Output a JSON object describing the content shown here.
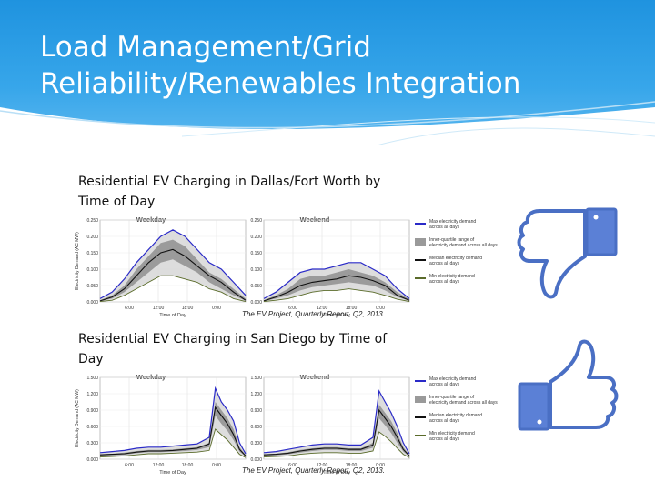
{
  "slide": {
    "title": "Load Management/Grid Reliability/Renewables Integration",
    "accent_color": "#1f93df"
  },
  "icons": {
    "top": "thumbs-down-icon",
    "bottom": "thumbs-up-icon",
    "color": "#4a6fc4"
  },
  "chart_data": [
    {
      "type": "area",
      "caption": "Residential EV Charging in Dallas/Fort Worth by Time of Day",
      "source": "The EV Project, Quarterly Report, Q2, 2013.",
      "ylabel": "Electricity Demand (AC MW)",
      "xlabel": "Time of Day",
      "x_ticks": [
        "6:00",
        "12:00",
        "18:00",
        "0:00"
      ],
      "y_ticks": [
        "0.000",
        "0.050",
        "0.100",
        "0.150",
        "0.200",
        "0.250"
      ],
      "ylim": [
        0,
        0.25
      ],
      "panels": [
        {
          "title": "Weekday",
          "hours": [
            0,
            2,
            4,
            6,
            8,
            10,
            12,
            14,
            16,
            18,
            20,
            22,
            24
          ],
          "max": [
            0.01,
            0.03,
            0.07,
            0.12,
            0.16,
            0.2,
            0.22,
            0.2,
            0.16,
            0.12,
            0.1,
            0.06,
            0.02
          ],
          "iqr_high": [
            0.005,
            0.02,
            0.05,
            0.1,
            0.14,
            0.18,
            0.19,
            0.17,
            0.13,
            0.09,
            0.07,
            0.04,
            0.01
          ],
          "median": [
            0.003,
            0.015,
            0.04,
            0.08,
            0.12,
            0.15,
            0.16,
            0.14,
            0.11,
            0.08,
            0.06,
            0.03,
            0.005
          ],
          "iqr_low": [
            0.002,
            0.01,
            0.03,
            0.06,
            0.09,
            0.12,
            0.13,
            0.11,
            0.09,
            0.06,
            0.04,
            0.02,
            0.003
          ],
          "min": [
            0.001,
            0.005,
            0.02,
            0.04,
            0.06,
            0.08,
            0.08,
            0.07,
            0.06,
            0.04,
            0.03,
            0.01,
            0.001
          ]
        },
        {
          "title": "Weekend",
          "hours": [
            0,
            2,
            4,
            6,
            8,
            10,
            12,
            14,
            16,
            18,
            20,
            22,
            24
          ],
          "max": [
            0.01,
            0.03,
            0.06,
            0.09,
            0.1,
            0.1,
            0.11,
            0.12,
            0.12,
            0.1,
            0.08,
            0.04,
            0.01
          ],
          "iqr_high": [
            0.005,
            0.02,
            0.04,
            0.07,
            0.08,
            0.08,
            0.09,
            0.1,
            0.09,
            0.08,
            0.06,
            0.03,
            0.008
          ],
          "median": [
            0.003,
            0.015,
            0.03,
            0.05,
            0.06,
            0.065,
            0.07,
            0.08,
            0.075,
            0.065,
            0.05,
            0.02,
            0.005
          ],
          "iqr_low": [
            0.002,
            0.01,
            0.02,
            0.035,
            0.045,
            0.05,
            0.055,
            0.06,
            0.055,
            0.05,
            0.035,
            0.015,
            0.003
          ],
          "min": [
            0.001,
            0.005,
            0.01,
            0.02,
            0.03,
            0.035,
            0.035,
            0.04,
            0.035,
            0.03,
            0.02,
            0.008,
            0.001
          ]
        }
      ],
      "legend": [
        {
          "label": "Max electricity demand across all days",
          "color": "#2a2ac8",
          "kind": "line"
        },
        {
          "label": "Inner-quartile range of electricity demand across all days",
          "color": "#9a9a9a",
          "kind": "box"
        },
        {
          "label": "Median electricity demand across all days",
          "color": "#111111",
          "kind": "line"
        },
        {
          "label": "Min electricity demand across all days",
          "color": "#5a6b2a",
          "kind": "line"
        }
      ]
    },
    {
      "type": "area",
      "caption": "Residential EV Charging in San Diego by Time of Day",
      "source": "The EV Project, Quarterly Report, Q2, 2013.",
      "ylabel": "Electricity Demand (AC MW)",
      "xlabel": "Time of Day",
      "x_ticks": [
        "6:00",
        "12:00",
        "18:00",
        "0:00"
      ],
      "y_ticks": [
        "0.000",
        "0.300",
        "0.600",
        "0.900",
        "1.200",
        "1.500"
      ],
      "ylim": [
        0,
        1.5
      ],
      "panels": [
        {
          "title": "Weekday",
          "hours": [
            0,
            2,
            4,
            6,
            8,
            10,
            12,
            14,
            16,
            18,
            19,
            20,
            21,
            22,
            23,
            24
          ],
          "max": [
            0.12,
            0.14,
            0.16,
            0.2,
            0.22,
            0.22,
            0.24,
            0.26,
            0.28,
            0.4,
            1.3,
            1.05,
            0.9,
            0.7,
            0.3,
            0.1
          ],
          "iqr_high": [
            0.09,
            0.1,
            0.12,
            0.15,
            0.17,
            0.17,
            0.18,
            0.2,
            0.22,
            0.3,
            1.05,
            0.9,
            0.75,
            0.55,
            0.22,
            0.08
          ],
          "median": [
            0.08,
            0.09,
            0.1,
            0.13,
            0.15,
            0.15,
            0.16,
            0.18,
            0.2,
            0.28,
            0.95,
            0.8,
            0.65,
            0.45,
            0.18,
            0.06
          ],
          "iqr_low": [
            0.06,
            0.07,
            0.08,
            0.11,
            0.13,
            0.13,
            0.14,
            0.15,
            0.17,
            0.22,
            0.8,
            0.65,
            0.52,
            0.35,
            0.14,
            0.05
          ],
          "min": [
            0.04,
            0.05,
            0.06,
            0.08,
            0.1,
            0.1,
            0.11,
            0.12,
            0.13,
            0.16,
            0.55,
            0.45,
            0.35,
            0.22,
            0.09,
            0.03
          ]
        },
        {
          "title": "Weekend",
          "hours": [
            0,
            2,
            4,
            6,
            8,
            10,
            12,
            14,
            16,
            18,
            19,
            20,
            21,
            22,
            23,
            24
          ],
          "max": [
            0.12,
            0.14,
            0.18,
            0.22,
            0.26,
            0.28,
            0.28,
            0.26,
            0.26,
            0.4,
            1.25,
            1.05,
            0.85,
            0.6,
            0.3,
            0.1
          ],
          "iqr_high": [
            0.09,
            0.1,
            0.13,
            0.17,
            0.2,
            0.22,
            0.22,
            0.2,
            0.2,
            0.3,
            1.0,
            0.85,
            0.7,
            0.48,
            0.22,
            0.08
          ],
          "median": [
            0.08,
            0.09,
            0.11,
            0.15,
            0.18,
            0.2,
            0.2,
            0.18,
            0.18,
            0.26,
            0.9,
            0.75,
            0.6,
            0.4,
            0.18,
            0.06
          ],
          "iqr_low": [
            0.06,
            0.07,
            0.09,
            0.12,
            0.15,
            0.17,
            0.17,
            0.15,
            0.15,
            0.21,
            0.75,
            0.62,
            0.48,
            0.3,
            0.14,
            0.05
          ],
          "min": [
            0.04,
            0.05,
            0.06,
            0.09,
            0.11,
            0.12,
            0.12,
            0.11,
            0.11,
            0.15,
            0.5,
            0.42,
            0.32,
            0.2,
            0.09,
            0.03
          ]
        }
      ],
      "legend": [
        {
          "label": "Max electricity demand across all days",
          "color": "#2a2ac8",
          "kind": "line"
        },
        {
          "label": "Inner-quartile range of electricity demand across all days",
          "color": "#9a9a9a",
          "kind": "box"
        },
        {
          "label": "Median electricity demand across all days",
          "color": "#111111",
          "kind": "line"
        },
        {
          "label": "Min electricity demand across all days",
          "color": "#5a6b2a",
          "kind": "line"
        }
      ]
    }
  ]
}
